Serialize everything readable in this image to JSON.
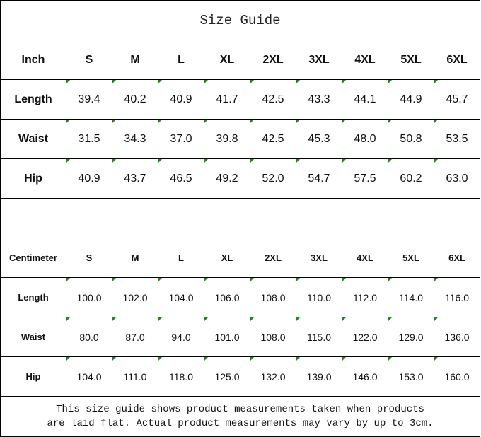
{
  "title": "Size Guide",
  "inch": {
    "header": [
      "Inch",
      "S",
      "M",
      "L",
      "XL",
      "2XL",
      "3XL",
      "4XL",
      "5XL",
      "6XL"
    ],
    "rows": [
      {
        "label": "Length",
        "values": [
          "39.4",
          "40.2",
          "40.9",
          "41.7",
          "42.5",
          "43.3",
          "44.1",
          "44.9",
          "45.7"
        ]
      },
      {
        "label": "Waist",
        "values": [
          "31.5",
          "34.3",
          "37.0",
          "39.8",
          "42.5",
          "45.3",
          "48.0",
          "50.8",
          "53.5"
        ]
      },
      {
        "label": "Hip",
        "values": [
          "40.9",
          "43.7",
          "46.5",
          "49.2",
          "52.0",
          "54.7",
          "57.5",
          "60.2",
          "63.0"
        ]
      }
    ]
  },
  "cm": {
    "header": [
      "Centimeter",
      "S",
      "M",
      "L",
      "XL",
      "2XL",
      "3XL",
      "4XL",
      "5XL",
      "6XL"
    ],
    "rows": [
      {
        "label": "Length",
        "values": [
          "100.0",
          "102.0",
          "104.0",
          "106.0",
          "108.0",
          "110.0",
          "112.0",
          "114.0",
          "116.0"
        ]
      },
      {
        "label": "Waist",
        "values": [
          "80.0",
          "87.0",
          "94.0",
          "101.0",
          "108.0",
          "115.0",
          "122.0",
          "129.0",
          "136.0"
        ]
      },
      {
        "label": "Hip",
        "values": [
          "104.0",
          "111.0",
          "118.0",
          "125.0",
          "132.0",
          "139.0",
          "146.0",
          "153.0",
          "160.0"
        ]
      }
    ]
  },
  "note": {
    "line1": "This size guide shows product measurements taken when products",
    "line2": "are laid flat. Actual product measurements may vary by up to 3cm."
  }
}
